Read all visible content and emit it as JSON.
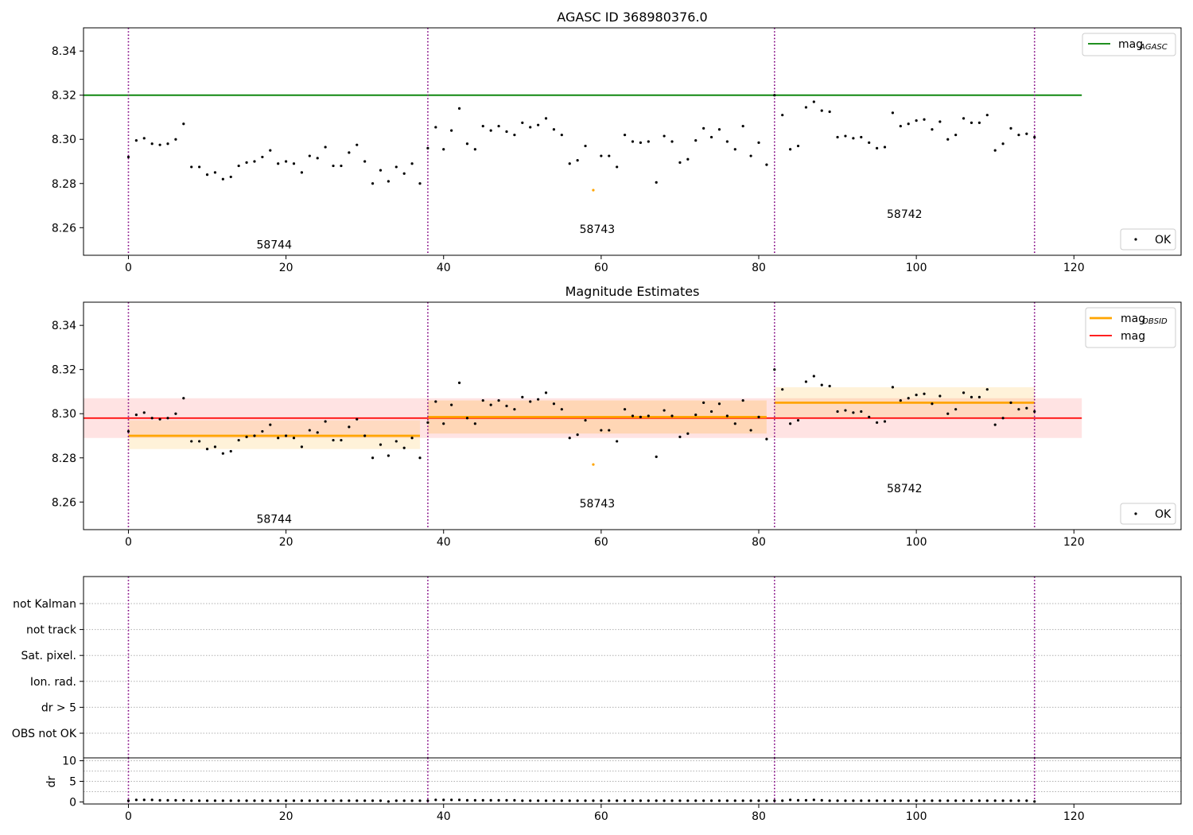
{
  "chart_data": [
    {
      "type": "scatter",
      "title": "AGASC ID 368980376.0",
      "xlim": [
        -5.7,
        133.6
      ],
      "ylim": [
        8.2475,
        8.3505
      ],
      "xticks": [
        0,
        20,
        40,
        60,
        80,
        100,
        120
      ],
      "yticks": [
        8.26,
        8.28,
        8.3,
        8.32,
        8.34
      ],
      "ytick_labels": [
        "8.26",
        "8.28",
        "8.30",
        "8.32",
        "8.34"
      ],
      "obs_boundaries": [
        0,
        38,
        82,
        115
      ],
      "obs_labels": [
        {
          "text": "58744",
          "x": 18.5,
          "y": 8.2505
        },
        {
          "text": "58743",
          "x": 59.5,
          "y": 8.2575
        },
        {
          "text": "58742",
          "x": 98.5,
          "y": 8.2645
        }
      ],
      "reference_lines": [
        {
          "name": "mag_AGASC",
          "y": 8.32,
          "x": [
            -5.7,
            121
          ],
          "color": "#008000"
        }
      ],
      "legends": [
        {
          "position": "top-right",
          "entries": [
            {
              "label": "mag",
              "sub": "AGASC",
              "kind": "line",
              "color": "#008000"
            }
          ]
        },
        {
          "position": "bottom-right",
          "entries": [
            {
              "label": "OK",
              "kind": "point",
              "color": "#000000"
            }
          ]
        }
      ],
      "series": [
        {
          "name": "OK",
          "kind": "points",
          "color": "#000000",
          "ref": "mag_points"
        }
      ],
      "outliers": [
        {
          "x": 59,
          "y": 8.277,
          "color": "#ffa500"
        }
      ]
    },
    {
      "type": "scatter",
      "title": "Magnitude Estimates",
      "xlim": [
        -5.7,
        133.6
      ],
      "ylim": [
        8.2475,
        8.3505
      ],
      "xticks": [
        0,
        20,
        40,
        60,
        80,
        100,
        120
      ],
      "yticks": [
        8.26,
        8.28,
        8.3,
        8.32,
        8.34
      ],
      "ytick_labels": [
        "8.26",
        "8.28",
        "8.30",
        "8.32",
        "8.34"
      ],
      "obs_boundaries": [
        0,
        38,
        82,
        115
      ],
      "obs_labels": [
        {
          "text": "58744",
          "x": 18.5,
          "y": 8.2505
        },
        {
          "text": "58743",
          "x": 59.5,
          "y": 8.2575
        },
        {
          "text": "58742",
          "x": 98.5,
          "y": 8.2645
        }
      ],
      "bands": [
        {
          "x": [
            -5.7,
            121
          ],
          "y": [
            8.289,
            8.307
          ],
          "color": "#ff0000",
          "opacity": 0.11
        },
        {
          "x": [
            0,
            37
          ],
          "y": [
            8.284,
            8.297
          ],
          "color": "#ffa500",
          "opacity": 0.15
        },
        {
          "x": [
            38,
            81
          ],
          "y": [
            8.291,
            8.306
          ],
          "color": "#ffa500",
          "opacity": 0.2
        },
        {
          "x": [
            82,
            115
          ],
          "y": [
            8.298,
            8.312
          ],
          "color": "#ffa500",
          "opacity": 0.15
        }
      ],
      "mag_obsid_segments": [
        {
          "x": [
            0,
            37
          ],
          "y": 8.29
        },
        {
          "x": [
            38,
            81
          ],
          "y": 8.2985
        },
        {
          "x": [
            82,
            115
          ],
          "y": 8.305
        }
      ],
      "mag_line": {
        "x": [
          -5.7,
          121
        ],
        "y": 8.298
      },
      "legends": [
        {
          "position": "top-right",
          "entries": [
            {
              "label": "mag",
              "sub": "OBSID",
              "kind": "line",
              "color": "#ffa500"
            },
            {
              "label": "mag",
              "sub": "",
              "kind": "line",
              "color": "#ff0000"
            }
          ]
        },
        {
          "position": "bottom-right",
          "entries": [
            {
              "label": "OK",
              "kind": "point",
              "color": "#000000"
            }
          ]
        }
      ],
      "series": [
        {
          "name": "OK",
          "kind": "points",
          "color": "#000000",
          "ref": "mag_points"
        }
      ],
      "outliers": [
        {
          "x": 59,
          "y": 8.277,
          "color": "#ffa500"
        }
      ]
    },
    {
      "type": "table",
      "flag_rows": [
        "not Kalman",
        "not track",
        "Sat. pixel.",
        "Ion. rad.",
        "dr > 5",
        "OBS not OK"
      ],
      "obs_boundaries": [
        0,
        38,
        82,
        115
      ],
      "xlim": [
        -5.7,
        133.6
      ]
    },
    {
      "type": "scatter",
      "ylabel": "dr",
      "xlim": [
        -5.7,
        133.6
      ],
      "ylim": [
        -0.5,
        10.7
      ],
      "xticks": [
        0,
        20,
        40,
        60,
        80,
        100,
        120
      ],
      "yticks": [
        0,
        5,
        10
      ],
      "ytick_labels": [
        "0",
        "5",
        "10"
      ],
      "hgrid": [
        2.5,
        5,
        7.5,
        10
      ],
      "obs_boundaries": [
        0,
        38,
        82,
        115
      ],
      "series": [
        {
          "name": "dr",
          "kind": "points",
          "color": "#000000",
          "ref": "dr_points"
        }
      ]
    }
  ],
  "mag_points": [
    [
      0,
      8.292
    ],
    [
      1,
      8.2995
    ],
    [
      2,
      8.3005
    ],
    [
      3,
      8.298
    ],
    [
      4,
      8.2975
    ],
    [
      5,
      8.298
    ],
    [
      6,
      8.3
    ],
    [
      7,
      8.307
    ],
    [
      8,
      8.2875
    ],
    [
      9,
      8.2875
    ],
    [
      10,
      8.284
    ],
    [
      11,
      8.285
    ],
    [
      12,
      8.282
    ],
    [
      13,
      8.283
    ],
    [
      14,
      8.288
    ],
    [
      15,
      8.2895
    ],
    [
      16,
      8.29
    ],
    [
      17,
      8.292
    ],
    [
      18,
      8.295
    ],
    [
      19,
      8.289
    ],
    [
      20,
      8.29
    ],
    [
      21,
      8.289
    ],
    [
      22,
      8.285
    ],
    [
      23,
      8.2925
    ],
    [
      24,
      8.2915
    ],
    [
      25,
      8.2965
    ],
    [
      26,
      8.288
    ],
    [
      27,
      8.288
    ],
    [
      28,
      8.294
    ],
    [
      29,
      8.2975
    ],
    [
      30,
      8.29
    ],
    [
      31,
      8.28
    ],
    [
      32,
      8.286
    ],
    [
      33,
      8.281
    ],
    [
      34,
      8.2875
    ],
    [
      35,
      8.2845
    ],
    [
      36,
      8.289
    ],
    [
      37,
      8.28
    ],
    [
      38,
      8.296
    ],
    [
      39,
      8.3055
    ],
    [
      40,
      8.2955
    ],
    [
      41,
      8.304
    ],
    [
      42,
      8.314
    ],
    [
      43,
      8.298
    ],
    [
      44,
      8.2955
    ],
    [
      45,
      8.306
    ],
    [
      46,
      8.304
    ],
    [
      47,
      8.306
    ],
    [
      48,
      8.3035
    ],
    [
      49,
      8.302
    ],
    [
      50,
      8.3075
    ],
    [
      51,
      8.3055
    ],
    [
      52,
      8.3065
    ],
    [
      53,
      8.3095
    ],
    [
      54,
      8.3045
    ],
    [
      55,
      8.302
    ],
    [
      56,
      8.289
    ],
    [
      57,
      8.2905
    ],
    [
      58,
      8.297
    ],
    [
      60,
      8.2925
    ],
    [
      61,
      8.2925
    ],
    [
      62,
      8.2875
    ],
    [
      63,
      8.302
    ],
    [
      64,
      8.299
    ],
    [
      65,
      8.2985
    ],
    [
      66,
      8.299
    ],
    [
      67,
      8.2805
    ],
    [
      68,
      8.3015
    ],
    [
      69,
      8.299
    ],
    [
      70,
      8.2895
    ],
    [
      71,
      8.291
    ],
    [
      72,
      8.2995
    ],
    [
      73,
      8.305
    ],
    [
      74,
      8.301
    ],
    [
      75,
      8.3045
    ],
    [
      76,
      8.299
    ],
    [
      77,
      8.2955
    ],
    [
      78,
      8.306
    ],
    [
      79,
      8.2925
    ],
    [
      80,
      8.2985
    ],
    [
      81,
      8.2885
    ],
    [
      82,
      8.32
    ],
    [
      83,
      8.311
    ],
    [
      84,
      8.2955
    ],
    [
      85,
      8.297
    ],
    [
      86,
      8.3145
    ],
    [
      87,
      8.317
    ],
    [
      88,
      8.313
    ],
    [
      89,
      8.3125
    ],
    [
      90,
      8.301
    ],
    [
      91,
      8.3015
    ],
    [
      92,
      8.3005
    ],
    [
      93,
      8.301
    ],
    [
      94,
      8.2985
    ],
    [
      95,
      8.296
    ],
    [
      96,
      8.2965
    ],
    [
      97,
      8.312
    ],
    [
      98,
      8.306
    ],
    [
      99,
      8.307
    ],
    [
      100,
      8.3085
    ],
    [
      101,
      8.309
    ],
    [
      102,
      8.3045
    ],
    [
      103,
      8.308
    ],
    [
      104,
      8.3
    ],
    [
      105,
      8.302
    ],
    [
      106,
      8.3095
    ],
    [
      107,
      8.3075
    ],
    [
      108,
      8.3075
    ],
    [
      109,
      8.311
    ],
    [
      110,
      8.295
    ],
    [
      111,
      8.298
    ],
    [
      112,
      8.305
    ],
    [
      113,
      8.302
    ],
    [
      114,
      8.3025
    ],
    [
      115,
      8.301
    ]
  ],
  "dr_points": [
    [
      0,
      0.3
    ],
    [
      1,
      0.5
    ],
    [
      2,
      0.5
    ],
    [
      3,
      0.5
    ],
    [
      4,
      0.4
    ],
    [
      5,
      0.4
    ],
    [
      6,
      0.4
    ],
    [
      7,
      0.4
    ],
    [
      8,
      0.3
    ],
    [
      9,
      0.3
    ],
    [
      10,
      0.3
    ],
    [
      11,
      0.3
    ],
    [
      12,
      0.3
    ],
    [
      13,
      0.3
    ],
    [
      14,
      0.3
    ],
    [
      15,
      0.3
    ],
    [
      16,
      0.3
    ],
    [
      17,
      0.3
    ],
    [
      18,
      0.3
    ],
    [
      19,
      0.3
    ],
    [
      20,
      0.3
    ],
    [
      21,
      0.3
    ],
    [
      22,
      0.3
    ],
    [
      23,
      0.3
    ],
    [
      24,
      0.3
    ],
    [
      25,
      0.3
    ],
    [
      26,
      0.3
    ],
    [
      27,
      0.3
    ],
    [
      28,
      0.3
    ],
    [
      29,
      0.3
    ],
    [
      30,
      0.3
    ],
    [
      31,
      0.3
    ],
    [
      32,
      0.3
    ],
    [
      33,
      0.1
    ],
    [
      34,
      0.3
    ],
    [
      35,
      0.3
    ],
    [
      36,
      0.3
    ],
    [
      37,
      0.3
    ],
    [
      38,
      0.3
    ],
    [
      39,
      0.5
    ],
    [
      40,
      0.5
    ],
    [
      41,
      0.5
    ],
    [
      42,
      0.5
    ],
    [
      43,
      0.4
    ],
    [
      44,
      0.4
    ],
    [
      45,
      0.4
    ],
    [
      46,
      0.4
    ],
    [
      47,
      0.4
    ],
    [
      48,
      0.4
    ],
    [
      49,
      0.4
    ],
    [
      50,
      0.3
    ],
    [
      51,
      0.3
    ],
    [
      52,
      0.3
    ],
    [
      53,
      0.3
    ],
    [
      54,
      0.3
    ],
    [
      55,
      0.3
    ],
    [
      56,
      0.3
    ],
    [
      57,
      0.3
    ],
    [
      58,
      0.3
    ],
    [
      59,
      0.3
    ],
    [
      60,
      0.3
    ],
    [
      61,
      0.3
    ],
    [
      62,
      0.3
    ],
    [
      63,
      0.3
    ],
    [
      64,
      0.3
    ],
    [
      65,
      0.3
    ],
    [
      66,
      0.3
    ],
    [
      67,
      0.3
    ],
    [
      68,
      0.3
    ],
    [
      69,
      0.3
    ],
    [
      70,
      0.3
    ],
    [
      71,
      0.3
    ],
    [
      72,
      0.3
    ],
    [
      73,
      0.3
    ],
    [
      74,
      0.3
    ],
    [
      75,
      0.3
    ],
    [
      76,
      0.3
    ],
    [
      77,
      0.3
    ],
    [
      78,
      0.3
    ],
    [
      79,
      0.3
    ],
    [
      80,
      0.3
    ],
    [
      81,
      0.3
    ],
    [
      82,
      0.3
    ],
    [
      83,
      0.3
    ],
    [
      84,
      0.5
    ],
    [
      85,
      0.4
    ],
    [
      86,
      0.4
    ],
    [
      87,
      0.5
    ],
    [
      88,
      0.4
    ],
    [
      89,
      0.3
    ],
    [
      90,
      0.3
    ],
    [
      91,
      0.3
    ],
    [
      92,
      0.3
    ],
    [
      93,
      0.3
    ],
    [
      94,
      0.3
    ],
    [
      95,
      0.3
    ],
    [
      96,
      0.3
    ],
    [
      97,
      0.3
    ],
    [
      98,
      0.3
    ],
    [
      99,
      0.3
    ],
    [
      100,
      0.3
    ],
    [
      101,
      0.3
    ],
    [
      102,
      0.3
    ],
    [
      103,
      0.3
    ],
    [
      104,
      0.3
    ],
    [
      105,
      0.3
    ],
    [
      106,
      0.3
    ],
    [
      107,
      0.3
    ],
    [
      108,
      0.3
    ],
    [
      109,
      0.3
    ],
    [
      110,
      0.3
    ],
    [
      111,
      0.3
    ],
    [
      112,
      0.3
    ],
    [
      113,
      0.3
    ],
    [
      114,
      0.3
    ],
    [
      115,
      0.1
    ]
  ],
  "colors": {
    "ok_points": "#000000",
    "outlier": "#ffa500",
    "mag_agasc": "#008000",
    "mag_obsid": "#ffa500",
    "mag": "#ff0000",
    "obs_boundary": "#800080",
    "grid": "#b0b0b0"
  }
}
